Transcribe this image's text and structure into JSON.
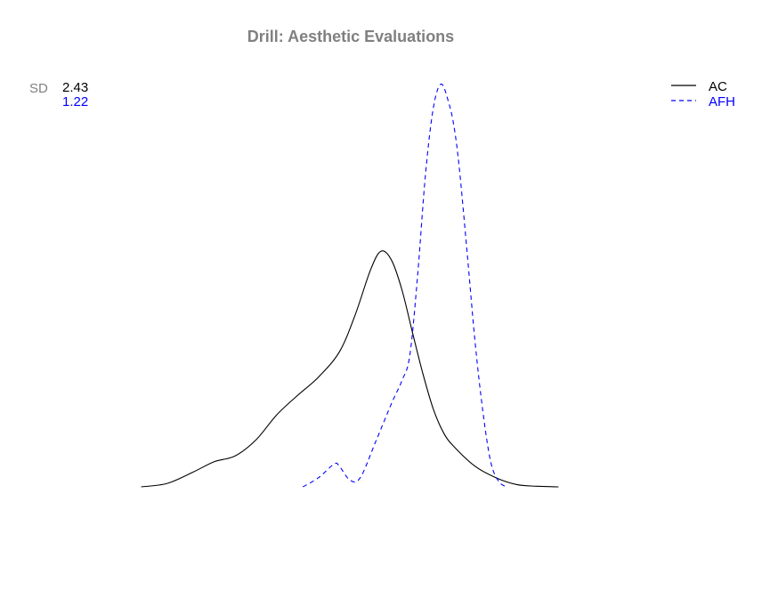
{
  "chart_data": {
    "type": "line",
    "title": "Drill: Aesthetic Evaluations",
    "xlabel": "",
    "ylabel": "",
    "axes_visible": false,
    "grid": false,
    "legend_position": "top-right",
    "sd_label": "SD",
    "xlim": [
      -9,
      1
    ],
    "ylim": [
      0,
      0.35
    ],
    "series": [
      {
        "name": "AC",
        "sd": "2.43",
        "color": "#000000",
        "dash": "solid",
        "x": [
          -8.0,
          -7.5,
          -7.0,
          -6.6,
          -6.2,
          -5.8,
          -5.4,
          -5.0,
          -4.6,
          -4.2,
          -3.9,
          -3.6,
          -3.4,
          -3.2,
          -3.0,
          -2.8,
          -2.6,
          -2.4,
          -2.2,
          -2.0,
          -1.6,
          -1.2,
          -0.8,
          -0.4,
          0.0
        ],
        "y": [
          0.0,
          0.003,
          0.013,
          0.022,
          0.027,
          0.041,
          0.063,
          0.08,
          0.096,
          0.118,
          0.15,
          0.19,
          0.206,
          0.198,
          0.172,
          0.135,
          0.099,
          0.068,
          0.047,
          0.035,
          0.018,
          0.008,
          0.002,
          0.0005,
          0.0
        ]
      },
      {
        "name": "AFH",
        "sd": "1.22",
        "color": "#0000ff",
        "dash": "dashed",
        "x": [
          -4.9,
          -4.6,
          -4.3,
          -4.2,
          -4.0,
          -3.8,
          -3.5,
          -3.2,
          -3.0,
          -2.85,
          -2.7,
          -2.55,
          -2.4,
          -2.25,
          -2.1,
          -2.0,
          -1.9,
          -1.75,
          -1.6,
          -1.45,
          -1.3,
          -1.15,
          -1.0
        ],
        "y": [
          0.0,
          0.008,
          0.02,
          0.018,
          0.006,
          0.008,
          0.04,
          0.073,
          0.093,
          0.115,
          0.185,
          0.273,
          0.331,
          0.352,
          0.335,
          0.314,
          0.278,
          0.204,
          0.127,
          0.066,
          0.022,
          0.005,
          0.0
        ]
      }
    ]
  }
}
